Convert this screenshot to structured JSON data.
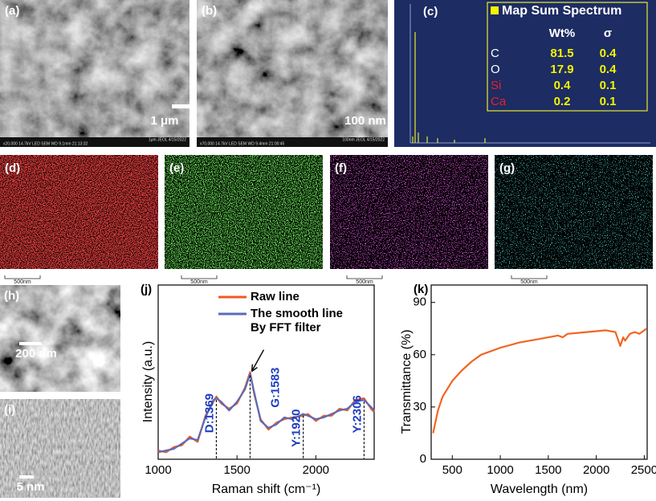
{
  "sem": [
    {
      "label": "(a)",
      "scale": "1 μm",
      "footer": [
        "x20,000   14.7kV LED   SEM   WD 9.1mm   21:13:32",
        "1μm   JEOL   4/15/2022"
      ]
    },
    {
      "label": "(b)",
      "scale": "100 nm",
      "footer": [
        "x70,000   14.7kV LED   SEM   WD 9.4mm   21:00:45",
        "100nm   JEOL   4/15/2022"
      ]
    }
  ],
  "eds": {
    "label": "(c)",
    "title": "Map Sum Spectrum",
    "headers": [
      "Wt%",
      "σ"
    ],
    "rows": [
      [
        "C",
        81.5,
        0.4
      ],
      [
        "O",
        17.9,
        0.4
      ],
      [
        "Si",
        0.4,
        0.1
      ],
      [
        "Ca",
        0.2,
        0.1
      ]
    ]
  },
  "maps": [
    {
      "label": "(d)",
      "scale": "500nm"
    },
    {
      "label": "(e)",
      "scale": "500nm"
    },
    {
      "label": "(f)",
      "scale": "500nm"
    },
    {
      "label": "(g)",
      "scale": "500nm"
    }
  ],
  "tem": [
    {
      "label": "(h)",
      "scale": "200 nm"
    },
    {
      "label": "(i)",
      "scale": "5 nm"
    }
  ],
  "chart_data": [
    {
      "type": "line",
      "label": "(j)",
      "xlabel": "Raman shift (cm⁻¹)",
      "ylabel": "Intensity (a.u.)",
      "xlim": [
        1000,
        2370
      ],
      "ylim": [
        0,
        100
      ],
      "xticks": [
        1000,
        1500,
        2000
      ],
      "x": [
        1000,
        1050,
        1100,
        1150,
        1200,
        1250,
        1300,
        1350,
        1369,
        1400,
        1450,
        1500,
        1550,
        1583,
        1610,
        1650,
        1700,
        1750,
        1800,
        1850,
        1920,
        1950,
        2000,
        2050,
        2100,
        2150,
        2200,
        2250,
        2306,
        2350,
        2370
      ],
      "series": [
        {
          "name": "Raw line",
          "color": "#ee5a24",
          "values": [
            5,
            4,
            7,
            8,
            13,
            10,
            25,
            33,
            36,
            32,
            29,
            32,
            41,
            50,
            37,
            23,
            17,
            21,
            23,
            24,
            25,
            26,
            22,
            25,
            25,
            29,
            28,
            34,
            35,
            29,
            27
          ]
        },
        {
          "name": "The smooth line\nBy FFT filter",
          "color": "#5a6bb8",
          "values": [
            4,
            5,
            6,
            9,
            12,
            11,
            24,
            34,
            35,
            33,
            28,
            33,
            40,
            49,
            38,
            22,
            18,
            20,
            24,
            23,
            26,
            25,
            23,
            24,
            26,
            28,
            29,
            33,
            34,
            30,
            28
          ]
        }
      ],
      "legend": "upper left",
      "annotations": [
        {
          "text": "D:1369",
          "x": 1369,
          "y": 35
        },
        {
          "text": "G:1583",
          "x": 1583,
          "y": 49
        },
        {
          "text": "Y:1920",
          "x": 1920,
          "y": 26
        },
        {
          "text": "Y:2306",
          "x": 2306,
          "y": 34
        }
      ]
    },
    {
      "type": "line",
      "label": "(k)",
      "xlabel": "Wavelength (nm)",
      "ylabel": "Transmittance (%)",
      "xlim": [
        280,
        2530
      ],
      "ylim": [
        0,
        100
      ],
      "xticks": [
        500,
        1000,
        1500,
        2000,
        2500
      ],
      "yticks": [
        0,
        30,
        60,
        90
      ],
      "x": [
        300,
        350,
        400,
        500,
        600,
        700,
        800,
        1000,
        1200,
        1400,
        1600,
        1650,
        1700,
        1900,
        2100,
        2200,
        2250,
        2280,
        2300,
        2350,
        2400,
        2450,
        2500,
        2520
      ],
      "series": [
        {
          "color": "#f26522",
          "values": [
            15,
            28,
            36,
            45,
            51,
            56,
            60,
            64,
            67,
            69,
            71,
            70,
            72,
            73,
            74,
            73,
            65,
            70,
            68,
            72,
            73,
            72,
            74,
            75
          ]
        }
      ]
    }
  ]
}
